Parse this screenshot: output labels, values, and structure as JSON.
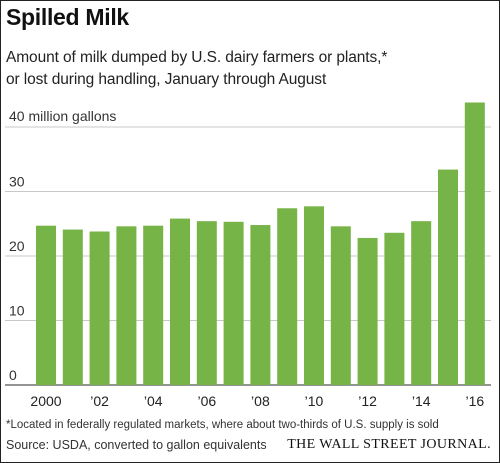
{
  "chart_data": {
    "type": "bar",
    "title": "Spilled Milk",
    "subtitle_line1": "Amount of milk dumped by U.S. dairy farmers or plants,*",
    "subtitle_line2": "or lost during handling, January through August",
    "ylabel_top": "40 million gallons",
    "yticks": [
      "0",
      "10",
      "20",
      "30"
    ],
    "ylim": [
      0,
      45
    ],
    "grid": true,
    "categories": [
      "2000",
      "2001",
      "2002",
      "2003",
      "2004",
      "2005",
      "2006",
      "2007",
      "2008",
      "2009",
      "2010",
      "2011",
      "2012",
      "2013",
      "2014",
      "2015",
      "2016"
    ],
    "x_tick_labels": [
      "2000",
      "",
      "’02",
      "",
      "’04",
      "",
      "’06",
      "",
      "’08",
      "",
      "’10",
      "",
      "’12",
      "",
      "’14",
      "",
      "’16"
    ],
    "values": [
      24.7,
      24.1,
      23.8,
      24.6,
      24.7,
      25.8,
      25.4,
      25.3,
      24.8,
      27.4,
      27.7,
      24.6,
      22.8,
      23.6,
      25.4,
      33.4,
      43.8
    ],
    "bar_color": "#76b447",
    "footnote": "*Located in federally regulated markets, where about two-thirds of U.S. supply is sold",
    "source": "Source: USDA, converted to gallon equivalents",
    "brand": "THE WALL STREET JOURNAL."
  }
}
